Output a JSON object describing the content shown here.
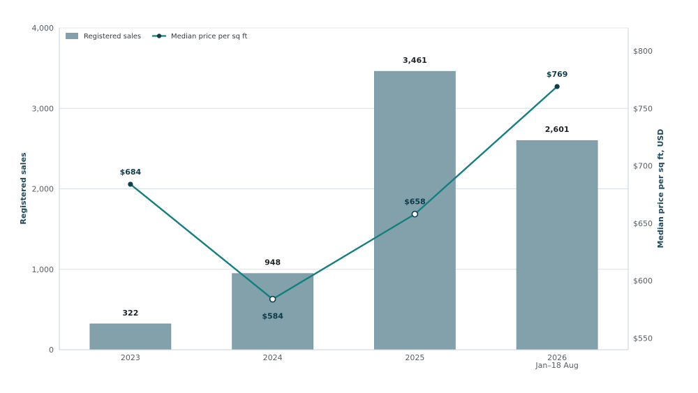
{
  "chart_data": {
    "type": "bar+line",
    "categories": [
      "2023",
      "2024",
      "2025",
      "2026"
    ],
    "category_sublabels": [
      "",
      "",
      "",
      "Jan–18 Aug"
    ],
    "series": [
      {
        "name": "Registered sales",
        "type": "bar",
        "axis": "left",
        "values": [
          322,
          948,
          3461,
          2601
        ],
        "labels": [
          "322",
          "948",
          "3,461",
          "2,601"
        ],
        "color": "#82a1ab"
      },
      {
        "name": "Median price per sq ft",
        "type": "line",
        "axis": "right",
        "values": [
          684,
          584,
          658,
          769
        ],
        "labels": [
          "$684",
          "$584",
          "$658",
          "$769"
        ],
        "color": "#13807f"
      }
    ],
    "ylabel": "Registered sales",
    "y2label": "Median price per sq ft, USD",
    "ylim": [
      0,
      4000
    ],
    "y2lim": [
      540,
      820
    ],
    "yticks": [
      0,
      1000,
      2000,
      3000,
      4000
    ],
    "ytick_labels": [
      "0",
      "1,000",
      "2,000",
      "3,000",
      "4,000"
    ],
    "y2ticks": [
      550,
      600,
      650,
      700,
      750,
      800
    ],
    "y2tick_labels": [
      "$550",
      "$600",
      "$650",
      "$700",
      "$750",
      "$800"
    ],
    "grid": true,
    "legend_position": "top-left"
  }
}
